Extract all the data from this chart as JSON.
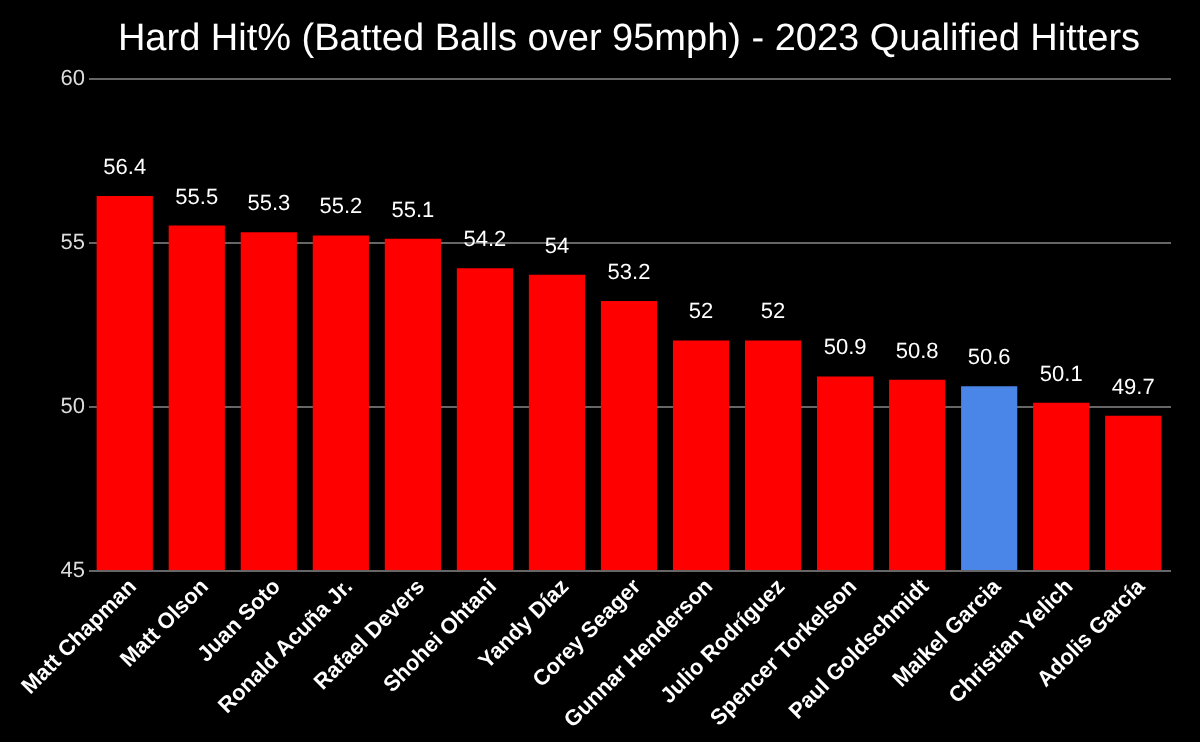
{
  "chart_data": {
    "type": "bar",
    "title": "Hard Hit% (Batted Balls over 95mph) - 2023 Qualified Hitters",
    "categories": [
      "Matt Chapman",
      "Matt Olson",
      "Juan Soto",
      "Ronald Acuña Jr.",
      "Rafael Devers",
      "Shohei Ohtani",
      "Yandy Díaz",
      "Corey Seager",
      "Gunnar Henderson",
      "Julio Rodríguez",
      "Spencer Torkelson",
      "Paul Goldschmidt",
      "Maikel Garcia",
      "Christian Yelich",
      "Adolis García"
    ],
    "values": [
      56.4,
      55.5,
      55.3,
      55.2,
      55.1,
      54.2,
      54,
      53.2,
      52,
      52,
      50.9,
      50.8,
      50.6,
      50.1,
      49.7
    ],
    "colors": [
      "#ff0000",
      "#ff0000",
      "#ff0000",
      "#ff0000",
      "#ff0000",
      "#ff0000",
      "#ff0000",
      "#ff0000",
      "#ff0000",
      "#ff0000",
      "#ff0000",
      "#ff0000",
      "#4a86e8",
      "#ff0000",
      "#ff0000"
    ],
    "ylim": [
      45,
      60
    ],
    "yticks": [
      45,
      50,
      55,
      60
    ],
    "grid": "y",
    "data_labels": true
  }
}
